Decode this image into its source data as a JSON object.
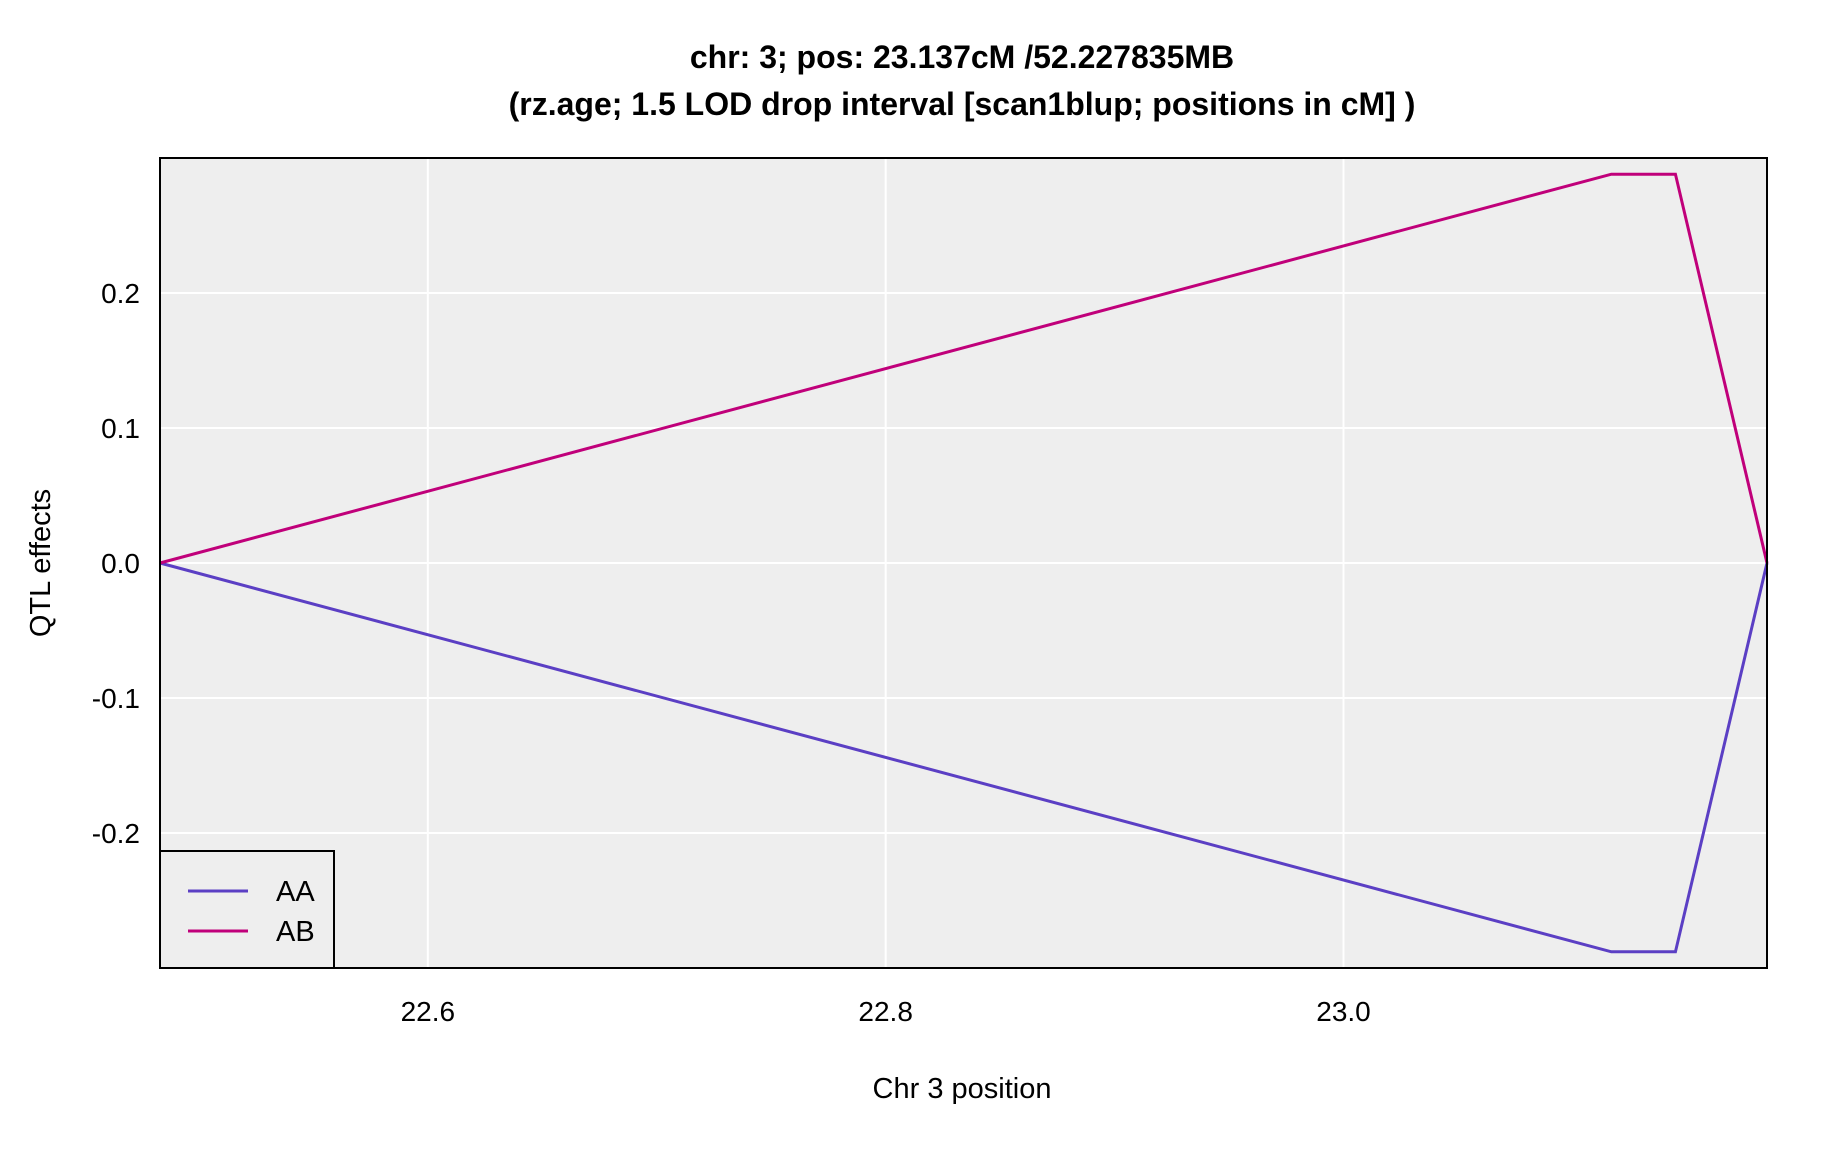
{
  "chart_data": {
    "type": "line",
    "title": "chr: 3; pos: 23.137cM /52.227835MB",
    "subtitle": "(rz.age; 1.5 LOD drop interval [scan1blup; positions in cM] )",
    "xlabel": "Chr 3 position",
    "ylabel": "QTL effects",
    "xlim": [
      22.483,
      23.185
    ],
    "ylim": [
      -0.3,
      0.3
    ],
    "x_ticks": [
      22.6,
      22.8,
      23.0
    ],
    "x_tick_labels": [
      "22.6",
      "22.8",
      "23.0"
    ],
    "y_ticks": [
      -0.2,
      -0.1,
      0.0,
      0.1,
      0.2
    ],
    "y_tick_labels": [
      "-0.2",
      "-0.1",
      "0.0",
      "0.1",
      "0.2"
    ],
    "grid": true,
    "legend_position": "bottom-left",
    "x": [
      22.483,
      23.117,
      23.145,
      23.185
    ],
    "series": [
      {
        "name": "AA",
        "color": "#5b3fc4",
        "values": [
          0.0,
          -0.288,
          -0.288,
          0.0
        ]
      },
      {
        "name": "AB",
        "color": "#c0007a",
        "values": [
          0.0,
          0.288,
          0.288,
          0.0
        ]
      }
    ]
  }
}
